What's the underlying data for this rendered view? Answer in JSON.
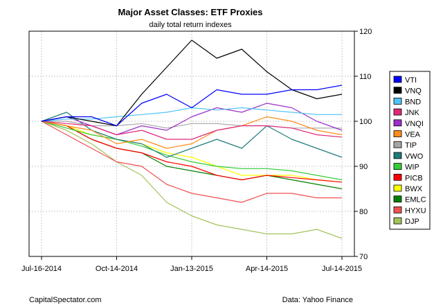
{
  "chart_data": {
    "type": "line",
    "title": "Major Asset Classes: ETF Proxies",
    "subtitle": "daily total return indexes",
    "x_ticks": [
      "Jul-16-2014",
      "Oct-14-2014",
      "Jan-13-2015",
      "Apr-14-2015",
      "Jul-14-2015"
    ],
    "x": [
      "Jul-16-2014",
      "Aug-15-2014",
      "Sep-15-2014",
      "Oct-14-2014",
      "Nov-13-2014",
      "Dec-13-2014",
      "Jan-13-2015",
      "Feb-12-2015",
      "Mar-14-2015",
      "Apr-14-2015",
      "May-14-2015",
      "Jun-14-2015",
      "Jul-14-2015"
    ],
    "ylim": [
      70,
      120
    ],
    "y_ticks": [
      70,
      80,
      90,
      100,
      110,
      120
    ],
    "y_axis_position": "right",
    "grid": true,
    "legend_position": "right",
    "series": [
      {
        "name": "VTI",
        "color": "#0000ff",
        "values": [
          100,
          101,
          101,
          99,
          104,
          106,
          103,
          107,
          106,
          106,
          107,
          107,
          108
        ]
      },
      {
        "name": "VNQ",
        "color": "#000000",
        "values": [
          100,
          101,
          100,
          99,
          106,
          112,
          118,
          114,
          116,
          111,
          107,
          105,
          106
        ]
      },
      {
        "name": "BND",
        "color": "#4fc3f7",
        "values": [
          100,
          100.5,
          100.5,
          101,
          101.5,
          102,
          103,
          102.5,
          103,
          102.5,
          102,
          101.5,
          101.5
        ]
      },
      {
        "name": "JNK",
        "color": "#e0287a",
        "values": [
          100,
          99.5,
          99,
          97,
          98,
          96,
          96,
          98,
          99,
          99,
          98.5,
          97,
          96.5
        ]
      },
      {
        "name": "VNQI",
        "color": "#9b30c9",
        "values": [
          100,
          101,
          99,
          97,
          99,
          98,
          101,
          103,
          102,
          104,
          103,
          100,
          98
        ]
      },
      {
        "name": "VEA",
        "color": "#ff8c1a",
        "values": [
          100,
          99,
          98,
          95,
          96,
          94,
          95,
          98,
          99,
          101,
          100,
          98,
          97
        ]
      },
      {
        "name": "TIP",
        "color": "#a6a6a6",
        "values": [
          100,
          100,
          99,
          99,
          99.5,
          98.5,
          99.5,
          99.5,
          99,
          99,
          98.5,
          98.5,
          98.5
        ]
      },
      {
        "name": "VWO",
        "color": "#1f7a7a",
        "values": [
          100,
          102,
          98,
          96,
          95,
          92,
          94,
          96,
          94,
          99,
          96,
          94,
          92
        ]
      },
      {
        "name": "WIP",
        "color": "#33cc33",
        "values": [
          100,
          98.5,
          97,
          96,
          94.5,
          92.5,
          91,
          90,
          89.5,
          89.5,
          89,
          88,
          87
        ]
      },
      {
        "name": "PICB",
        "color": "#ff0000",
        "values": [
          100,
          99,
          96,
          94,
          93,
          91,
          90,
          88,
          87,
          88,
          87.5,
          87,
          86.5
        ]
      },
      {
        "name": "BWX",
        "color": "#ffff00",
        "values": [
          100,
          99,
          97,
          96,
          95,
          93,
          92,
          90,
          88,
          88,
          88,
          87,
          86.5
        ]
      },
      {
        "name": "EMLC",
        "color": "#008000",
        "values": [
          100,
          99,
          96,
          94,
          93,
          90,
          89,
          88,
          87,
          88,
          87,
          86,
          85
        ]
      },
      {
        "name": "HYXU",
        "color": "#f05050",
        "values": [
          100,
          97,
          94,
          91,
          90,
          86,
          84,
          83,
          82,
          84,
          84,
          83,
          83
        ]
      },
      {
        "name": "DJP",
        "color": "#a3c25a",
        "values": [
          100,
          98,
          95,
          91,
          88,
          82,
          79,
          77,
          76,
          75,
          75,
          76,
          74
        ]
      }
    ]
  },
  "footer": {
    "left": "CapitalSpectator.com",
    "right": "Data: Yahoo Finance"
  }
}
